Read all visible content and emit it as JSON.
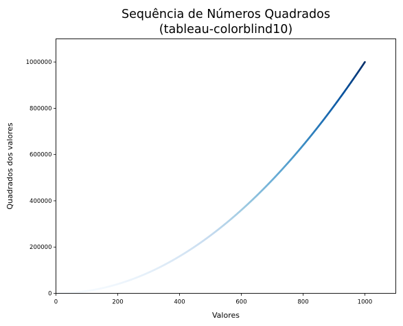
{
  "chart_data": {
    "type": "scatter",
    "title_line1": "Sequência de Números Quadrados",
    "title_line2": "(tableau-colorblind10)",
    "xlabel": "Valores",
    "ylabel": "Quadrados dos valores",
    "xlim": [
      0,
      1100
    ],
    "ylim": [
      0,
      1100000
    ],
    "x_ticks": [
      0,
      200,
      400,
      600,
      800,
      1000
    ],
    "y_ticks": [
      0,
      200000,
      400000,
      600000,
      800000,
      1000000
    ],
    "x_tick_labels": [
      "0",
      "200",
      "400",
      "600",
      "800",
      "1000"
    ],
    "y_tick_labels": [
      "0",
      "200000",
      "400000",
      "600000",
      "800000",
      "1000000"
    ],
    "series": [
      {
        "function": "y = x^2",
        "x_start": 1,
        "x_end": 1000,
        "colormap": "Blues"
      }
    ],
    "grid": false
  }
}
